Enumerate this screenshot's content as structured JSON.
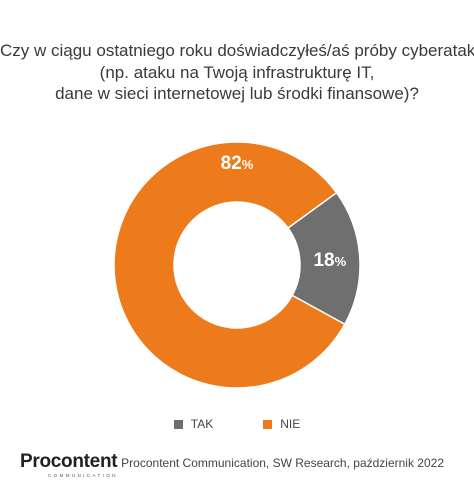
{
  "title_lines": [
    "Czy w ciągu ostatniego roku doświadczyłeś/aś próby cyberataku",
    "(np. ataku na Twoją infrastrukturę IT,",
    "dane w sieci internetowej lub środki finansowe)?"
  ],
  "chart_data": {
    "type": "pie",
    "donut": true,
    "slices": [
      {
        "label": "TAK",
        "value": 18,
        "display": "18",
        "unit": "%",
        "color": "#6f6f6f"
      },
      {
        "label": "NIE",
        "value": 82,
        "display": "82",
        "unit": "%",
        "color": "#ee7b1b"
      }
    ],
    "legend_position": "bottom"
  },
  "legend": [
    {
      "label": "TAK",
      "color": "#6f6f6f"
    },
    {
      "label": "NIE",
      "color": "#ee7b1b"
    }
  ],
  "footer": {
    "logo_text": "Procontent",
    "logo_subtext": "COMMUNICATION",
    "source": "Procontent Communication, SW Research, październik 2022"
  }
}
